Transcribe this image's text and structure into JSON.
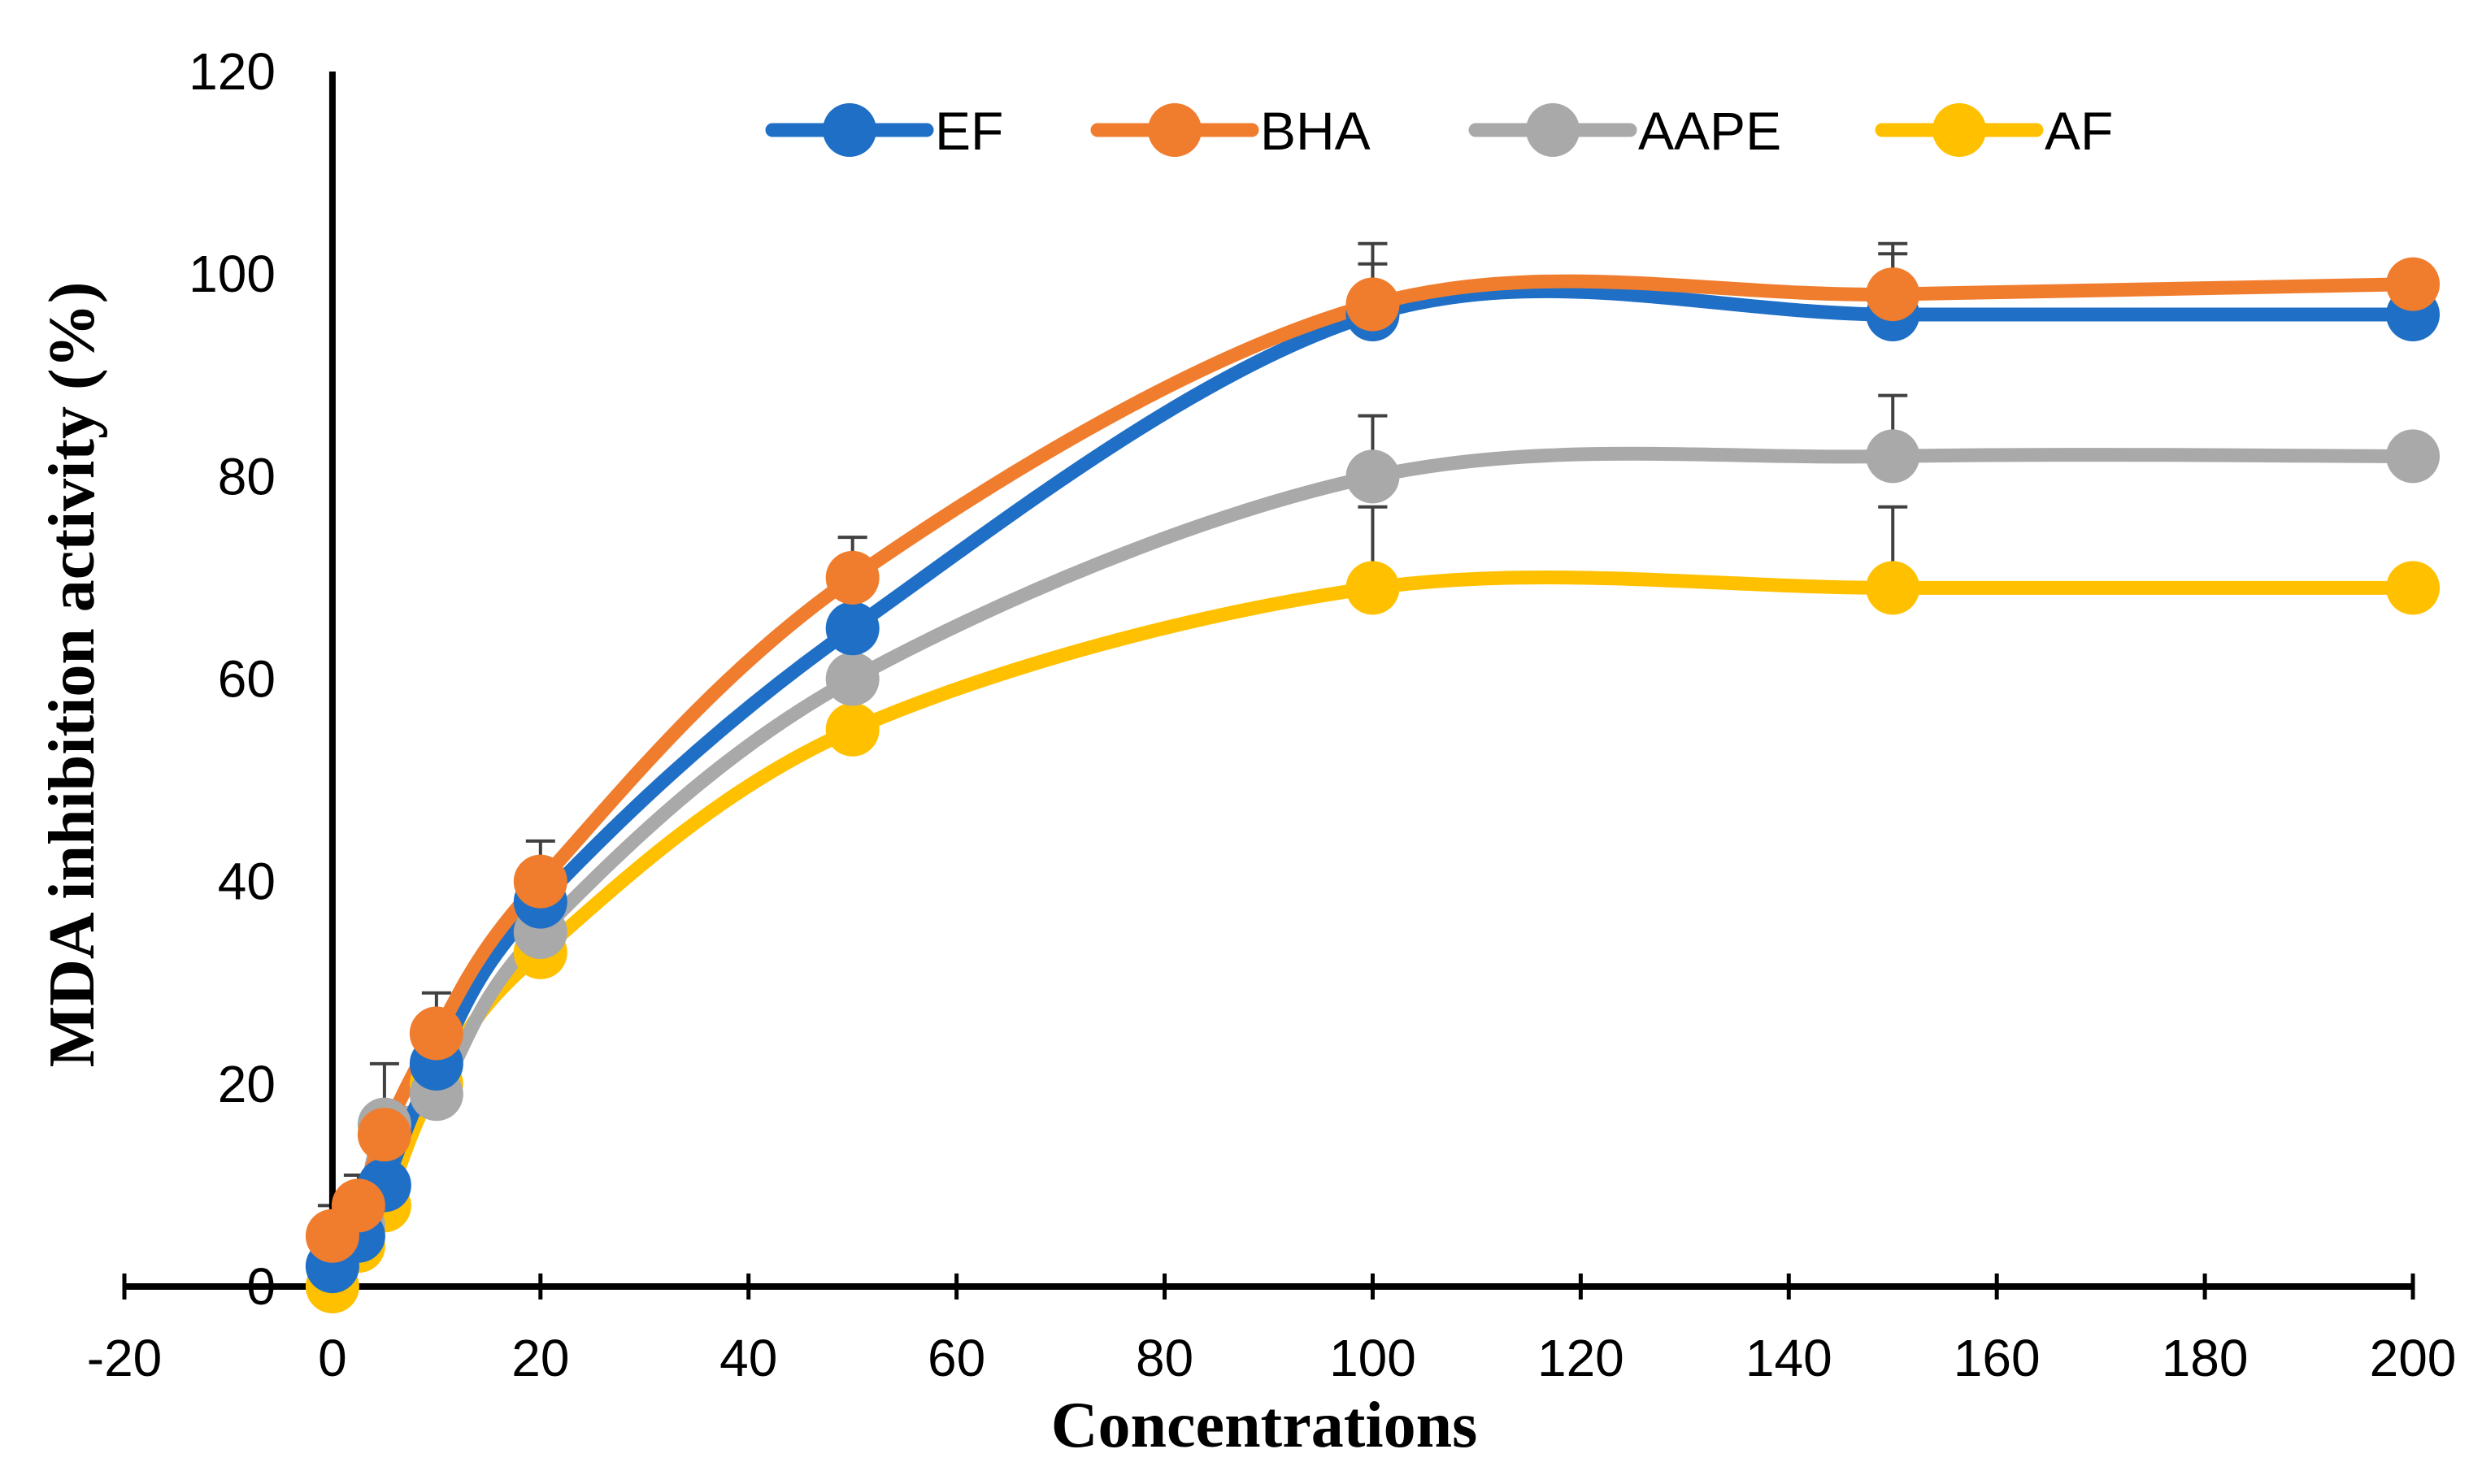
{
  "chart_data": {
    "type": "line",
    "title": "",
    "xlabel": "Concentrations",
    "ylabel": "MDA inhibition  activity (%)",
    "xlim": [
      -20,
      200
    ],
    "ylim": [
      0,
      120
    ],
    "x_ticks": [
      -20,
      0,
      20,
      40,
      60,
      80,
      100,
      120,
      140,
      160,
      180,
      200
    ],
    "y_ticks": [
      0,
      20,
      40,
      60,
      80,
      100,
      120
    ],
    "smooth": true,
    "grid": false,
    "legend_position": "top",
    "x": [
      0,
      2.5,
      5,
      10,
      20,
      50,
      100,
      150,
      200
    ],
    "series": [
      {
        "name": "EF",
        "color": "#1f6fc6",
        "values": [
          2,
          5,
          10,
          22,
          38,
          65,
          96,
          96,
          96
        ],
        "error_up": [
          4,
          4,
          3,
          4,
          4,
          5,
          5,
          6,
          0
        ]
      },
      {
        "name": "BHA",
        "color": "#f07d2e",
        "values": [
          5,
          8,
          15,
          25,
          40,
          70,
          97,
          98,
          99
        ],
        "error_up": [
          3,
          3,
          3,
          4,
          4,
          4,
          6,
          5,
          0
        ]
      },
      {
        "name": "AAPE",
        "color": "#a9a9a9",
        "values": [
          2,
          6,
          16,
          19,
          35,
          60,
          80,
          82,
          82
        ],
        "error_up": [
          3,
          3,
          6,
          4,
          4,
          3,
          6,
          6,
          0
        ]
      },
      {
        "name": "AF",
        "color": "#ffc000",
        "values": [
          0,
          4,
          8,
          20,
          33,
          55,
          69,
          69,
          69
        ],
        "error_up": [
          2,
          2,
          2,
          3,
          3,
          2,
          8,
          8,
          0
        ]
      }
    ]
  }
}
